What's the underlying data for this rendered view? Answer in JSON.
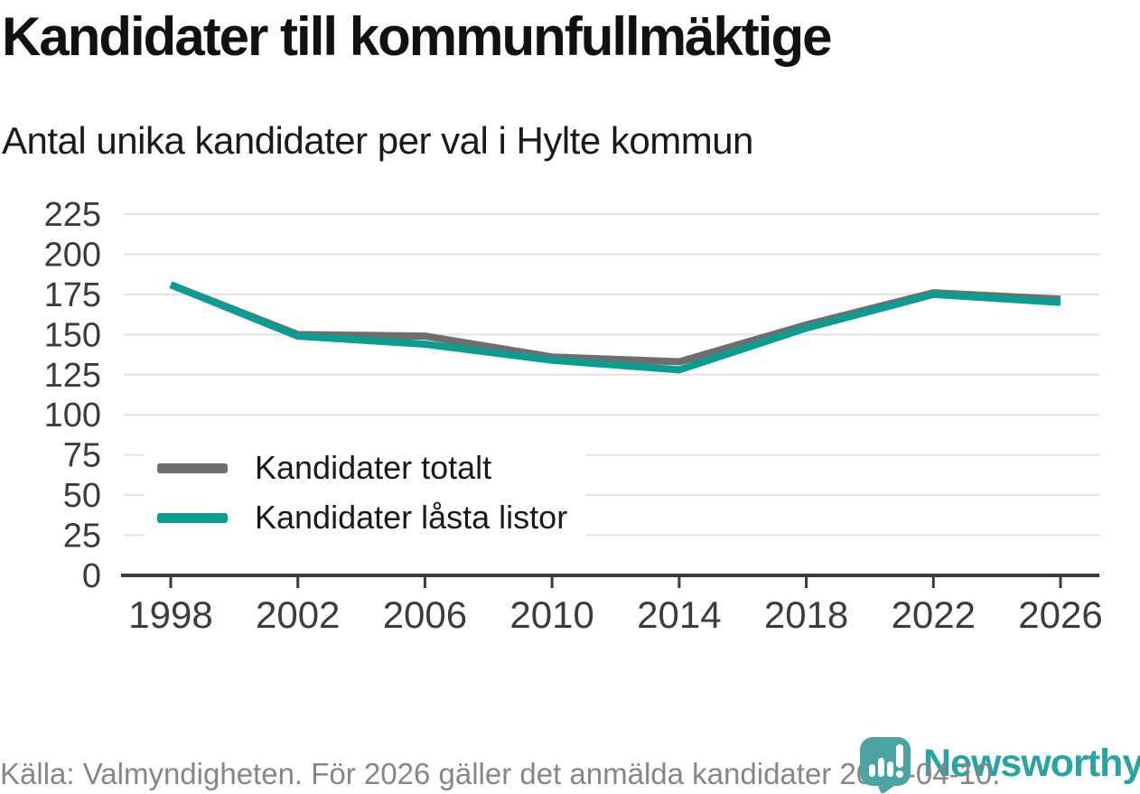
{
  "header": {
    "title": "Kandidater till kommunfullmäktige",
    "subtitle": "Antal unika kandidater per val i Hylte kommun"
  },
  "chart_data": {
    "type": "line",
    "title": "Kandidater till kommunfullmäktige",
    "subtitle": "Antal unika kandidater per val i Hylte kommun",
    "x": [
      "1998",
      "2002",
      "2006",
      "2010",
      "2014",
      "2018",
      "2022",
      "2026"
    ],
    "series": [
      {
        "name": "Kandidater totalt",
        "color": "#6e6e6e",
        "values": [
          181,
          150,
          149,
          136,
          133,
          156,
          176,
          172
        ]
      },
      {
        "name": "Kandidater låsta listor",
        "color": "#0b9d92",
        "values": [
          181,
          149,
          144,
          134,
          128,
          154,
          175,
          170
        ]
      }
    ],
    "xlabel": "",
    "ylabel": "",
    "ylim": [
      0,
      225
    ],
    "yticks": [
      0,
      25,
      50,
      75,
      100,
      125,
      150,
      175,
      200,
      225
    ],
    "grid": "horizontal",
    "legend_position": "inside-left"
  },
  "footer": {
    "source": "Källa: Valmyndigheten. För 2026 gäller det anmälda kandidater 2026-04-10."
  },
  "logo": {
    "text": "Newsworthy",
    "icon": "newsworthy-speech-bubble-chart-icon"
  },
  "colors": {
    "series_gray": "#6e6e6e",
    "accent_teal": "#0b9d92",
    "logo_text_teal": "#2ba3a2",
    "logo_icon_teal": "#4ba4a1",
    "gridline": "#e2e2e2",
    "axis": "#3b3b3b",
    "axis_text": "#3c3c3c",
    "footer_text": "#85858d"
  }
}
